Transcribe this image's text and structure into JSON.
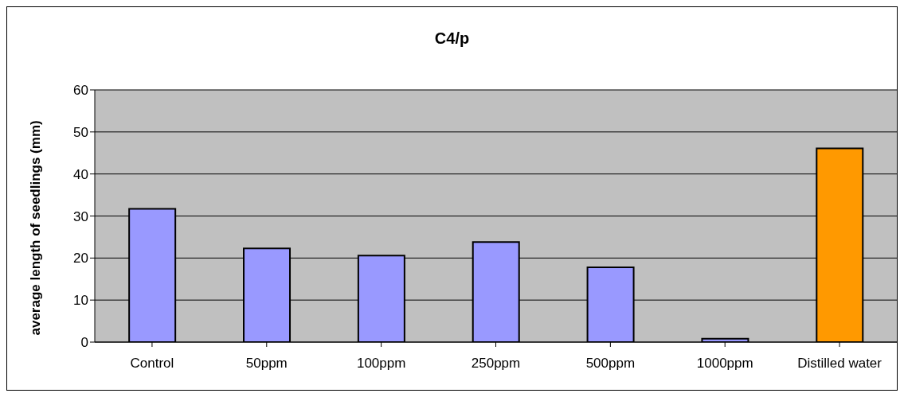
{
  "chart_data": {
    "type": "bar",
    "title": "C4/p",
    "ylabel": "average length of seedlings (mm)",
    "categories": [
      "Control",
      "50ppm",
      "100ppm",
      "250ppm",
      "500ppm",
      "1000ppm",
      "Distilled water"
    ],
    "values": [
      31.7,
      22.3,
      20.6,
      23.8,
      17.8,
      0.8,
      46.1
    ],
    "colors": [
      "#9999ff",
      "#9999ff",
      "#9999ff",
      "#9999ff",
      "#9999ff",
      "#9999ff",
      "#ff9900"
    ],
    "ylim": [
      0,
      60
    ],
    "yticks": [
      0,
      10,
      20,
      30,
      40,
      50,
      60
    ],
    "grid": "y",
    "legend": false
  }
}
